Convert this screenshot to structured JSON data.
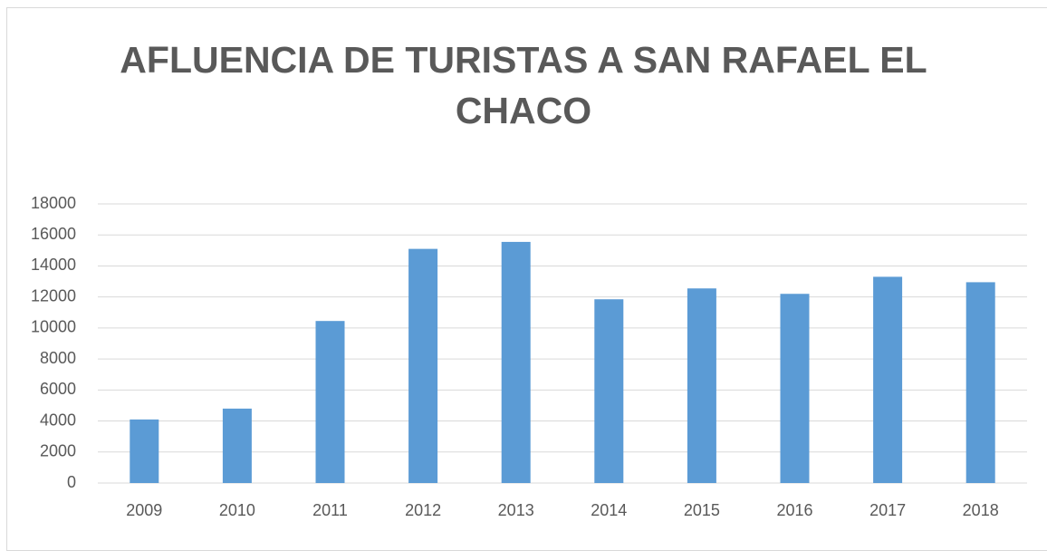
{
  "chart_data": {
    "type": "bar",
    "title": "AFLUENCIA DE TURISTAS A SAN RAFAEL EL CHACO",
    "categories": [
      "2009",
      "2010",
      "2011",
      "2012",
      "2013",
      "2014",
      "2015",
      "2016",
      "2017",
      "2018"
    ],
    "values": [
      4100,
      4800,
      10450,
      15100,
      15550,
      11850,
      12550,
      12200,
      13300,
      12950
    ],
    "color": "#5b9bd5",
    "ylim": [
      0,
      18000
    ],
    "yticks": [
      0,
      2000,
      4000,
      6000,
      8000,
      10000,
      12000,
      14000,
      16000,
      18000
    ],
    "grid": true
  }
}
